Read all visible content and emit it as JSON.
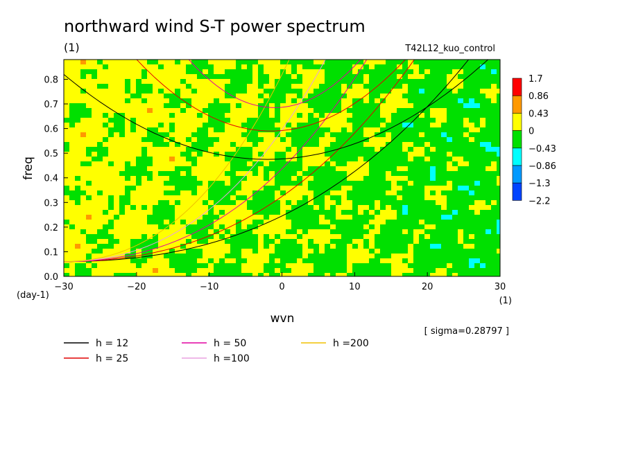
{
  "header": {
    "title": "northward wind S-T power spectrum",
    "units": "(1)",
    "experiment": "T42L12_kuo_control"
  },
  "axes": {
    "xlabel": "wvn",
    "ylabel": "freq",
    "y_units": "(day-1)",
    "x_units": "(1)"
  },
  "sigma_label": "[ sigma=0.28797 ]",
  "legend": [
    {
      "label": "h = 12",
      "color": "#000000"
    },
    {
      "label": "h = 25",
      "color": "#e00000"
    },
    {
      "label": "h = 50",
      "color": "#e000a0"
    },
    {
      "label": "h =100",
      "color": "#e8a0e0"
    },
    {
      "label": "h =200",
      "color": "#f0c000"
    }
  ],
  "colorbar": {
    "levels": [
      "1.7",
      "0.86",
      "0.43",
      "0",
      "−0.43",
      "−0.86",
      "−1.3",
      "−2.2"
    ],
    "colors": [
      "#ff0000",
      "#ff9900",
      "#ffff00",
      "#00e000",
      "#00ffff",
      "#0099ff",
      "#0044ff"
    ]
  },
  "chart_data": {
    "type": "heatmap",
    "title": "northward wind S-T power spectrum",
    "xlabel": "wvn",
    "ylabel": "freq",
    "xlim": [
      -30,
      30
    ],
    "ylim": [
      0,
      0.88
    ],
    "x_ticks": [
      "−30",
      "−20",
      "−10",
      "0",
      "10",
      "20",
      "30"
    ],
    "y_ticks": [
      "0.0",
      "0.1",
      "0.2",
      "0.3",
      "0.4",
      "0.5",
      "0.6",
      "0.7",
      "0.8"
    ],
    "x_tick_values": [
      -30,
      -20,
      -10,
      0,
      10,
      20,
      30
    ],
    "y_tick_values": [
      0,
      0.1,
      0.2,
      0.3,
      0.4,
      0.5,
      0.6,
      0.7,
      0.8
    ],
    "dispersion_curves": [
      {
        "h": 12,
        "kind": "kelvin",
        "coef": 0.0305
      },
      {
        "h": 25,
        "kind": "kelvin",
        "coef": 0.0435
      },
      {
        "h": 50,
        "kind": "kelvin",
        "coef": 0.062
      },
      {
        "h": 100,
        "kind": "kelvin",
        "coef": 0.088
      },
      {
        "h": 200,
        "kind": "kelvin",
        "coef": 0.125
      },
      {
        "h": 12,
        "kind": "gravity",
        "f0": 0.475,
        "k0": -2,
        "curv": 0.00044
      },
      {
        "h": 25,
        "kind": "gravity",
        "f0": 0.59,
        "k0": -1.5,
        "curv": 0.00085
      },
      {
        "h": 50,
        "kind": "gravity",
        "f0": 0.685,
        "k0": -1,
        "curv": 0.0014
      }
    ]
  }
}
